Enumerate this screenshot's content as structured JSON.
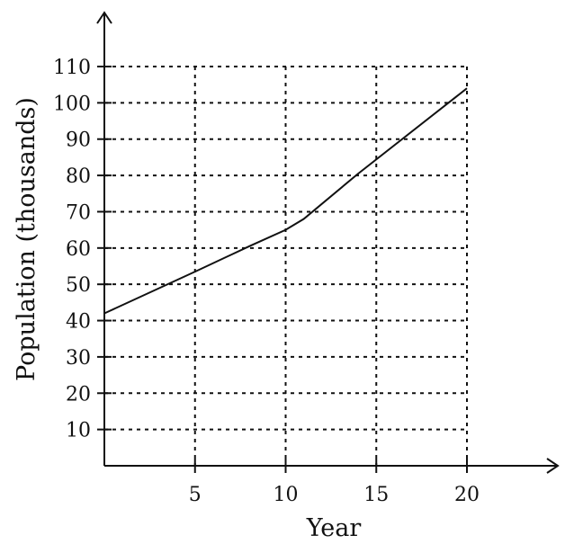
{
  "chart_data": {
    "type": "line",
    "xlabel": "Year",
    "ylabel": "Population (thousands)",
    "xlim": [
      0,
      20
    ],
    "ylim": [
      0,
      110
    ],
    "x_ticks": [
      5,
      10,
      15,
      20
    ],
    "y_ticks": [
      10,
      20,
      30,
      40,
      50,
      60,
      70,
      80,
      90,
      100,
      110
    ],
    "grid": true,
    "series": [
      {
        "x": [
          0,
          5,
          8,
          10,
          11,
          14,
          20
        ],
        "values": [
          42,
          53.5,
          60.5,
          65,
          68,
          80.5,
          104
        ]
      }
    ]
  }
}
